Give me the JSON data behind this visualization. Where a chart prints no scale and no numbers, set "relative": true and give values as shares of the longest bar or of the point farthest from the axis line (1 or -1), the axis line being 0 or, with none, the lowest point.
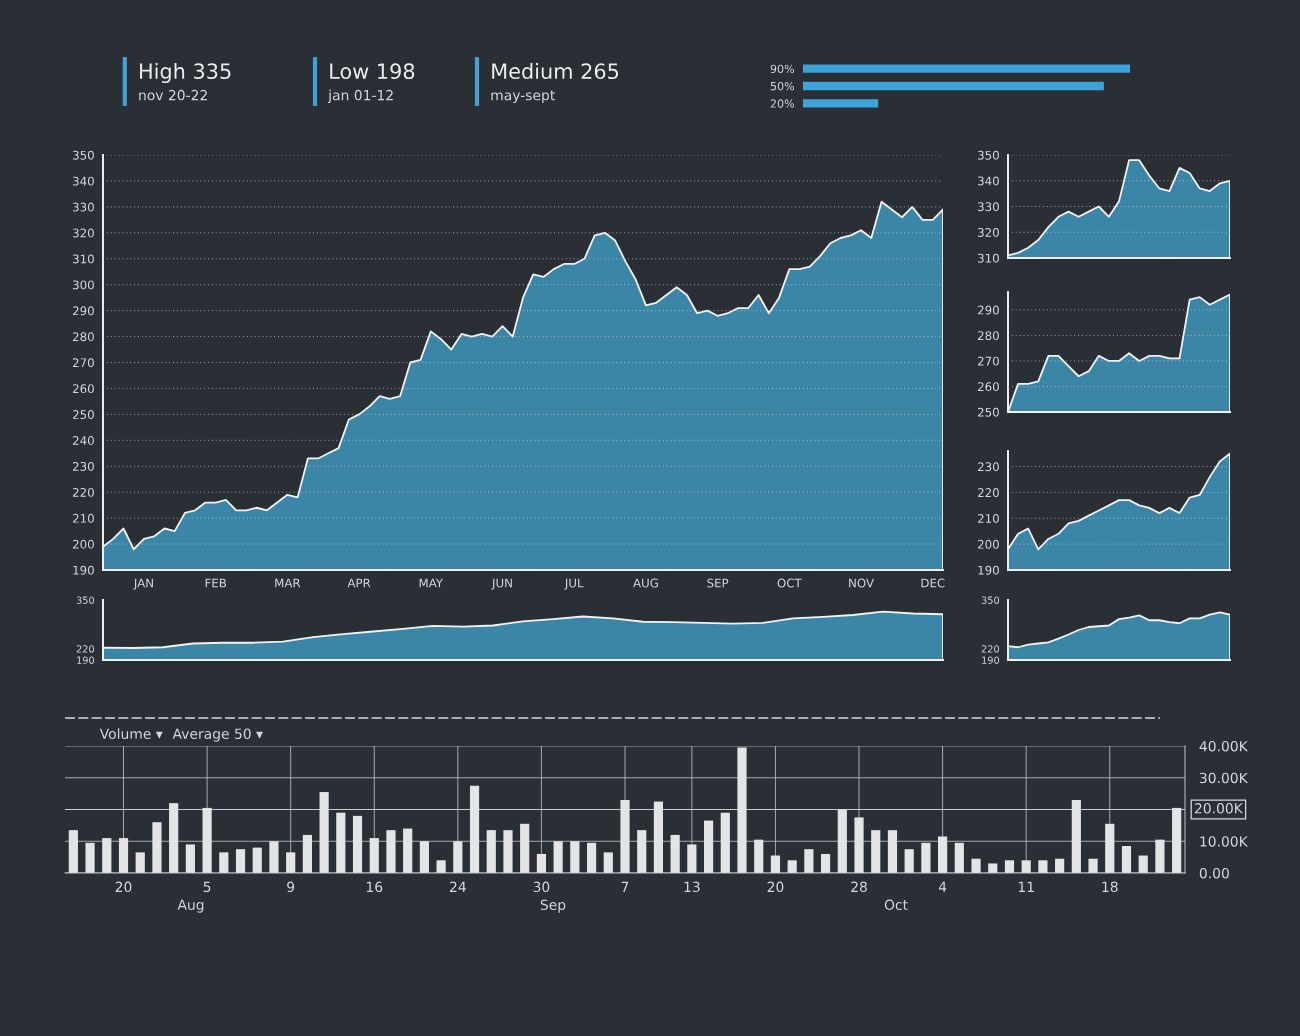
{
  "chart_data": [
    {
      "type": "other",
      "annotations": [
        "High 335",
        "nov 20-22",
        "Low 198",
        "jan 01-12",
        "Medium 265",
        "may-sept"
      ]
    },
    {
      "type": "bar",
      "orientation": "horizontal",
      "relative": true,
      "categories": [
        "90%",
        "50%",
        "20%"
      ],
      "values": [
        1,
        0.92,
        0.23
      ],
      "color": "#3ea3da"
    },
    {
      "type": "area",
      "color": "#3b85a6",
      "categories": [
        null,
        null,
        null,
        null,
        "JAN",
        null,
        null,
        null,
        null,
        null,
        null,
        "FEB",
        null,
        null,
        null,
        null,
        null,
        null,
        "MAR",
        null,
        null,
        null,
        null,
        null,
        null,
        "APR",
        null,
        null,
        null,
        null,
        null,
        null,
        "MAY",
        null,
        null,
        null,
        null,
        null,
        null,
        "JUN",
        null,
        null,
        null,
        null,
        null,
        null,
        "JUL",
        null,
        null,
        null,
        null,
        null,
        null,
        "AUG",
        null,
        null,
        null,
        null,
        null,
        null,
        "SEP",
        null,
        null,
        null,
        null,
        null,
        null,
        "OCT",
        null,
        null,
        null,
        null,
        null,
        null,
        "NOV",
        null,
        null,
        null,
        null,
        null,
        null,
        "DEC",
        null
      ],
      "values": [
        199,
        202,
        206,
        198,
        202,
        203,
        206,
        205,
        212,
        213,
        216,
        216,
        217,
        213,
        213,
        214,
        213,
        216,
        219,
        218,
        233,
        233,
        235,
        237,
        248,
        250,
        253,
        257,
        256,
        257,
        270,
        271,
        282,
        279,
        275,
        281,
        280,
        281,
        280,
        284,
        280,
        295,
        304,
        303,
        306,
        308,
        308,
        310,
        319,
        320,
        317,
        309,
        302,
        292,
        293,
        296,
        299,
        296,
        289,
        290,
        288,
        289,
        291,
        291,
        296,
        289,
        295,
        306,
        306,
        307,
        311,
        316,
        318,
        319,
        321,
        318,
        332,
        329,
        326,
        330,
        325,
        325,
        329
      ],
      "ylim": [
        190,
        350
      ],
      "yticks": [
        190,
        200,
        210,
        220,
        230,
        240,
        250,
        260,
        270,
        280,
        290,
        300,
        310,
        320,
        330,
        340,
        350
      ],
      "grid": "y"
    },
    {
      "type": "area",
      "color": "#3b85a6",
      "categories": [
        null,
        null,
        null,
        null,
        null,
        null,
        null,
        null,
        null,
        null,
        null,
        null,
        null,
        null,
        null,
        null,
        null,
        null,
        null,
        null,
        null,
        null,
        null
      ],
      "values": [
        311,
        312,
        314,
        317,
        322,
        326,
        328,
        326,
        328,
        330,
        326,
        332,
        348,
        348,
        342,
        337,
        336,
        345,
        343,
        337,
        336,
        339,
        340
      ],
      "ylim": [
        310,
        350
      ],
      "yticks": [
        310,
        320,
        330,
        340,
        350
      ],
      "grid": "y",
      "tick_labels": "y"
    },
    {
      "type": "area",
      "color": "#3b85a6",
      "categories": [
        null,
        null,
        null,
        null,
        null,
        null,
        null,
        null,
        null,
        null,
        null,
        null,
        null,
        null,
        null,
        null,
        null,
        null,
        null,
        null,
        null,
        null,
        null
      ],
      "values": [
        250,
        261,
        261,
        262,
        272,
        272,
        268,
        264,
        266,
        272,
        270,
        270,
        273,
        270,
        272,
        272,
        271,
        271,
        294,
        295,
        292,
        294,
        296
      ],
      "ylim": [
        250,
        297
      ],
      "yticks": [
        250,
        260,
        270,
        280,
        290
      ],
      "grid": "y",
      "tick_labels": "y"
    },
    {
      "type": "area",
      "color": "#3b85a6",
      "categories": [
        null,
        null,
        null,
        null,
        null,
        null,
        null,
        null,
        null,
        null,
        null,
        null,
        null,
        null,
        null,
        null,
        null,
        null,
        null,
        null,
        null,
        null,
        null
      ],
      "values": [
        198,
        204,
        206,
        198,
        202,
        204,
        208,
        209,
        211,
        213,
        215,
        217,
        217,
        215,
        214,
        212,
        214,
        212,
        218,
        219,
        226,
        232,
        235
      ],
      "ylim": [
        190,
        236
      ],
      "yticks": [
        190,
        200,
        210,
        220,
        230
      ],
      "grid": "y",
      "tick_labels": "y"
    },
    {
      "type": "area",
      "color": "#3b85a6",
      "categories": [
        null,
        null,
        null,
        null,
        null,
        null,
        null,
        null,
        null,
        null,
        null,
        null,
        null,
        null,
        null,
        null,
        null,
        null,
        null,
        null,
        null,
        null,
        null,
        null,
        null,
        null,
        null,
        null,
        null
      ],
      "values": [
        223,
        222,
        224,
        234,
        236,
        236,
        239,
        251,
        259,
        266,
        273,
        281,
        279,
        282,
        293,
        299,
        306,
        301,
        292,
        291,
        289,
        287,
        289,
        301,
        305,
        310,
        319,
        314,
        312
      ],
      "ylim": [
        190,
        350
      ],
      "yticks": [
        190,
        220,
        350
      ],
      "tick_labels": "y"
    },
    {
      "type": "area",
      "color": "#3b85a6",
      "categories": [
        null,
        null,
        null,
        null,
        null,
        null,
        null,
        null,
        null,
        null,
        null,
        null,
        null,
        null,
        null,
        null,
        null,
        null,
        null,
        null,
        null,
        null,
        null
      ],
      "values": [
        227,
        224,
        231,
        234,
        237,
        247,
        258,
        270,
        278,
        280,
        282,
        299,
        303,
        309,
        296,
        296,
        291,
        288,
        301,
        301,
        311,
        317,
        311
      ],
      "ylim": [
        190,
        350
      ],
      "yticks": [
        190,
        220,
        350
      ],
      "tick_labels": "y"
    },
    {
      "type": "bar",
      "color": "#e4e4e4",
      "categories": [
        null,
        null,
        null,
        "20",
        null,
        null,
        null,
        null,
        "5",
        null,
        null,
        null,
        null,
        "9",
        null,
        null,
        null,
        null,
        "16",
        null,
        null,
        null,
        null,
        "24",
        null,
        null,
        null,
        null,
        "30",
        null,
        null,
        null,
        null,
        "7",
        null,
        null,
        null,
        "13",
        null,
        null,
        null,
        null,
        "20",
        null,
        null,
        null,
        null,
        "28",
        null,
        null,
        null,
        null,
        "4",
        null,
        null,
        null,
        null,
        "11",
        null,
        null,
        null,
        null,
        "18",
        null,
        null,
        null,
        null
      ],
      "values": [
        13500,
        9500,
        11000,
        11000,
        6500,
        16000,
        22000,
        9000,
        20500,
        6500,
        7500,
        8000,
        10000,
        6500,
        12000,
        25500,
        19000,
        18000,
        11000,
        13500,
        14000,
        10000,
        4000,
        10000,
        27500,
        13500,
        13500,
        15500,
        6000,
        10000,
        10000,
        9500,
        6500,
        23000,
        13500,
        22500,
        12000,
        9000,
        16500,
        19000,
        39500,
        10500,
        5500,
        4000,
        7500,
        6000,
        20000,
        17500,
        13500,
        13500,
        7500,
        9500,
        11500,
        9500,
        4500,
        3000,
        4000,
        4000,
        4000,
        4500,
        23000,
        4500,
        15500,
        8500,
        5500,
        10500,
        20500
      ],
      "ylim": [
        0,
        40000
      ],
      "yticks": [
        {
          "value": 0,
          "label": "0.00"
        },
        {
          "value": 10000,
          "label": "10.00K"
        },
        {
          "value": 20000,
          "label": null
        },
        {
          "value": 30000,
          "label": "30.00K"
        },
        {
          "value": 40000,
          "label": "40.00K"
        }
      ],
      "grid": true,
      "ref_lines": [
        {
          "axis": "y",
          "value": 20000,
          "label": "20.00K"
        }
      ],
      "annotations": [
        "Volume ▾",
        "Average 50 ▾",
        "Aug",
        "Sep",
        "Oct"
      ]
    }
  ]
}
